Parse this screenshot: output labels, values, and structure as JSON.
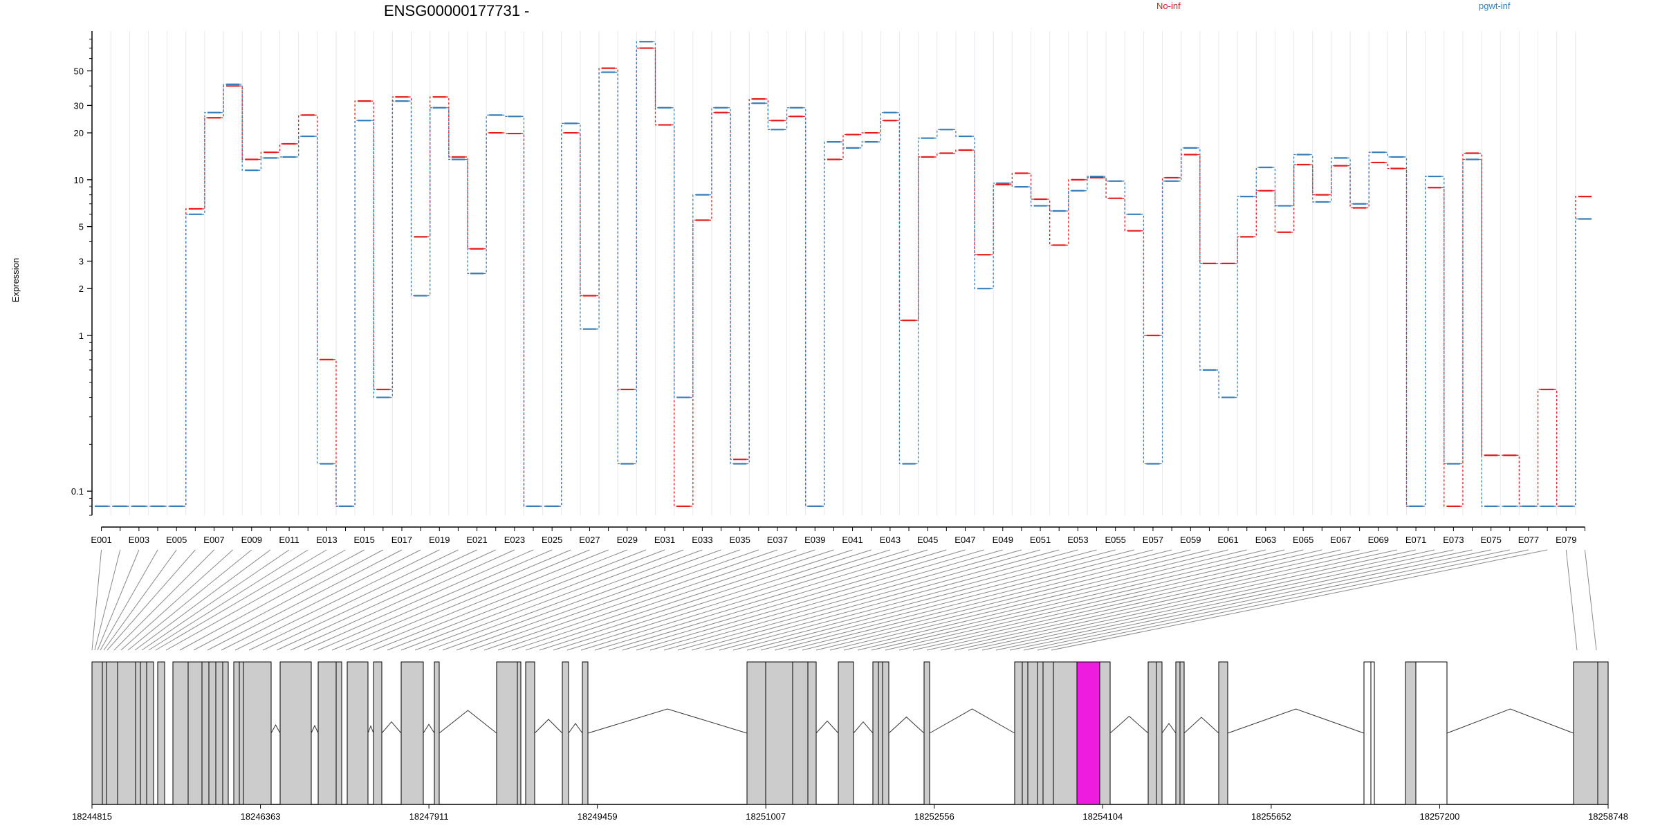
{
  "chart_data": {
    "type": "line",
    "title": "ENSG00000177731 -",
    "ylabel": "Expression",
    "yscale": "log",
    "ylim": [
      0.07,
      90
    ],
    "yticks": [
      0.1,
      1,
      2,
      3,
      5,
      10,
      20,
      30,
      50
    ],
    "ytick_labels": [
      "0.1",
      "1",
      "2",
      "3",
      "5",
      "10",
      "20",
      "30",
      "50"
    ],
    "x": [
      "E001",
      "E002",
      "E003",
      "E004",
      "E005",
      "E006",
      "E007",
      "E008",
      "E009",
      "E010",
      "E011",
      "E012",
      "E013",
      "E014",
      "E015",
      "E016",
      "E017",
      "E018",
      "E019",
      "E020",
      "E021",
      "E022",
      "E023",
      "E024",
      "E025",
      "E026",
      "E027",
      "E028",
      "E029",
      "E030",
      "E031",
      "E032",
      "E033",
      "E034",
      "E035",
      "E036",
      "E037",
      "E038",
      "E039",
      "E040",
      "E041",
      "E042",
      "E043",
      "E044",
      "E045",
      "E046",
      "E047",
      "E048",
      "E049",
      "E050",
      "E051",
      "E052",
      "E053",
      "E054",
      "E055",
      "E056",
      "E057",
      "E058",
      "E059",
      "E060",
      "E061",
      "E062",
      "E063",
      "E064",
      "E065",
      "E066",
      "E067",
      "E068",
      "E069",
      "E070",
      "E071",
      "E072",
      "E073",
      "E074",
      "E075",
      "E076",
      "E077",
      "E078",
      "E079",
      "E080"
    ],
    "x_tick_labels": [
      "E001",
      "E003",
      "E005",
      "E007",
      "E009",
      "E011",
      "E013",
      "E015",
      "E017",
      "E019",
      "E021",
      "E023",
      "E025",
      "E027",
      "E029",
      "E031",
      "E033",
      "E035",
      "E037",
      "E039",
      "E041",
      "E043",
      "E045",
      "E047",
      "E049",
      "E051",
      "E053",
      "E055",
      "E057",
      "E059",
      "E061",
      "E063",
      "E065",
      "E067",
      "E069",
      "E071",
      "E073",
      "E075",
      "E077",
      "E079"
    ],
    "series": [
      {
        "name": "No-inf",
        "color": "#e41a1c",
        "values": [
          0.08,
          0.08,
          0.08,
          0.08,
          0.08,
          6.5,
          25,
          40,
          13.5,
          15,
          17,
          26,
          0.7,
          0.08,
          32,
          0.45,
          34,
          4.3,
          34,
          14,
          3.6,
          20,
          19.8,
          0.08,
          0.08,
          20,
          1.8,
          52,
          0.45,
          70,
          22.5,
          0.08,
          5.5,
          27,
          0.16,
          33,
          24,
          25.5,
          0.08,
          13.5,
          19.5,
          20,
          24,
          1.25,
          14,
          14.8,
          15.5,
          3.3,
          9.3,
          11,
          7.5,
          3.8,
          10,
          10.3,
          7.6,
          4.7,
          1.0,
          10.3,
          14.5,
          2.9,
          2.9,
          4.3,
          8.5,
          4.6,
          12.5,
          8,
          12.3,
          6.6,
          12.9,
          11.8,
          0.08,
          8.9,
          0.08,
          14.8,
          0.17,
          0.17,
          0.08,
          0.45,
          0.08,
          7.8
        ]
      },
      {
        "name": "pgwt-inf",
        "color": "#377eb8",
        "values": [
          0.08,
          0.08,
          0.08,
          0.08,
          0.08,
          6.0,
          27,
          41,
          11.5,
          13.8,
          14,
          19,
          0.15,
          0.08,
          24,
          0.4,
          32,
          1.8,
          29,
          13.5,
          2.5,
          26,
          25.5,
          0.08,
          0.08,
          23,
          1.1,
          49,
          0.15,
          77,
          29,
          0.4,
          8,
          29,
          0.15,
          31,
          21,
          29,
          0.08,
          17.5,
          16,
          17.5,
          27,
          0.15,
          18.5,
          21,
          19,
          2.0,
          9.5,
          9,
          6.8,
          6.3,
          8.5,
          10.5,
          9.8,
          6,
          0.15,
          9.8,
          16,
          0.6,
          0.4,
          7.8,
          12,
          6.8,
          14.5,
          7.2,
          13.8,
          7,
          15,
          14,
          0.08,
          10.5,
          0.15,
          13.5,
          0.08,
          0.08,
          0.08,
          0.08,
          0.08,
          5.6
        ]
      }
    ],
    "genomic_axis": {
      "labels": [
        "18244815",
        "18246363",
        "18247911",
        "18249459",
        "18251007",
        "18252556",
        "18254104",
        "18255652",
        "18257200",
        "18258748"
      ]
    },
    "highlight_color": "#ee1cde",
    "exon_fill": "#cccccc",
    "grid": false,
    "legend": "top-right"
  }
}
